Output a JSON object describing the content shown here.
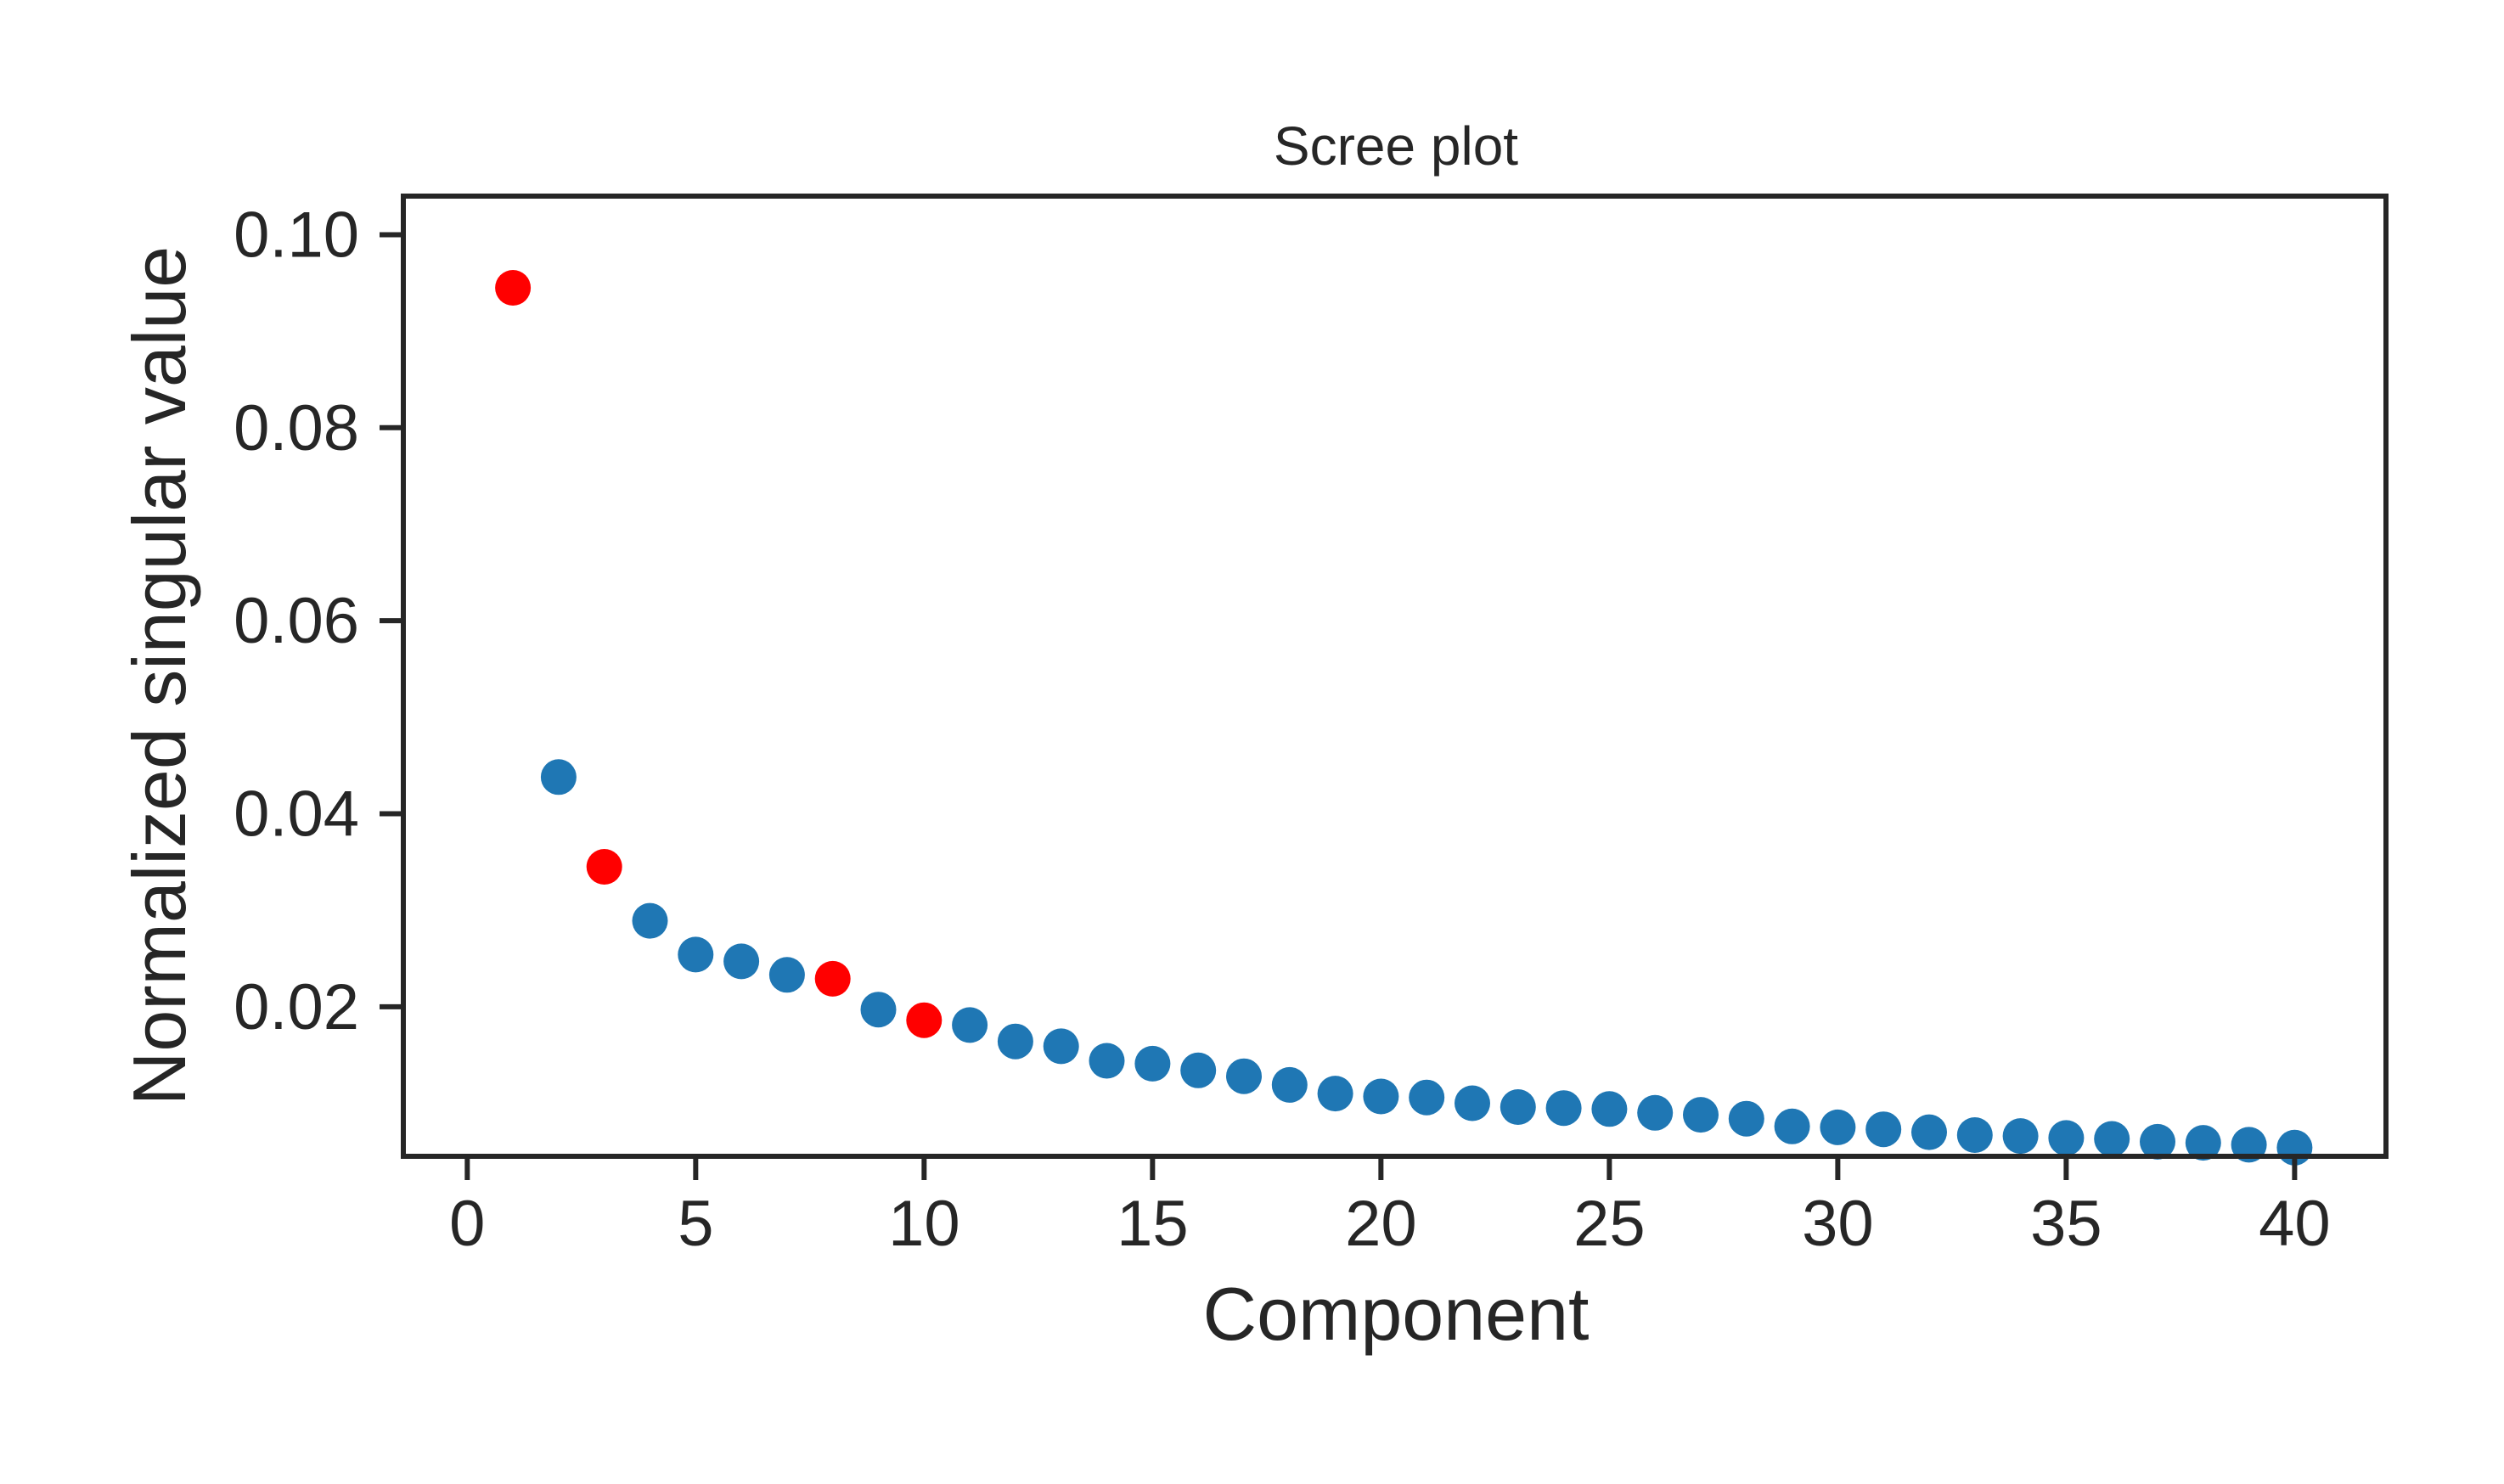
{
  "chart_data": {
    "type": "scatter",
    "title": "Scree plot",
    "xlabel": "Component",
    "ylabel": "Normalized singular value",
    "xlim": [
      -1.4,
      42
    ],
    "ylim": [
      0.0045,
      0.104
    ],
    "xticks": [
      0,
      5,
      10,
      15,
      20,
      25,
      30,
      35,
      40
    ],
    "xtick_labels": [
      "0",
      "5",
      "10",
      "15",
      "20",
      "25",
      "30",
      "35",
      "40"
    ],
    "yticks": [
      0.02,
      0.04,
      0.06,
      0.08,
      0.1
    ],
    "ytick_labels": [
      "0.02",
      "0.04",
      "0.06",
      "0.08",
      "0.10"
    ],
    "grid": false,
    "colors": {
      "default": "#1f77b4",
      "highlight": "#ff0000",
      "axes": "#262626"
    },
    "x": [
      1,
      2,
      3,
      4,
      5,
      6,
      7,
      8,
      9,
      10,
      11,
      12,
      13,
      14,
      15,
      16,
      17,
      18,
      19,
      20,
      21,
      22,
      23,
      24,
      25,
      26,
      27,
      28,
      29,
      30,
      31,
      32,
      33,
      34,
      35,
      36,
      37,
      38,
      39,
      40
    ],
    "y": [
      0.0945,
      0.0438,
      0.0345,
      0.0289,
      0.0254,
      0.0247,
      0.0233,
      0.0229,
      0.0197,
      0.0186,
      0.0181,
      0.0164,
      0.0159,
      0.0144,
      0.0141,
      0.0134,
      0.0128,
      0.0119,
      0.011,
      0.0107,
      0.0106,
      0.01,
      0.0096,
      0.0095,
      0.0094,
      0.009,
      0.0088,
      0.0084,
      0.0076,
      0.0075,
      0.0073,
      0.007,
      0.0067,
      0.0066,
      0.0064,
      0.0063,
      0.006,
      0.0059,
      0.0057,
      0.0054
    ],
    "highlighted_components": [
      1,
      3,
      8,
      10
    ]
  }
}
